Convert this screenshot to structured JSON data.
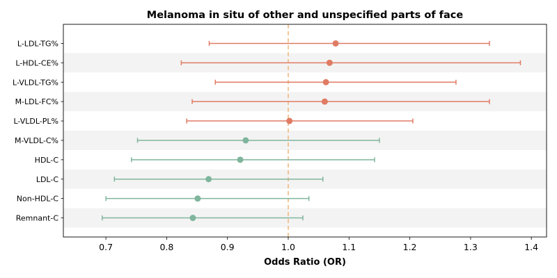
{
  "chart_data": {
    "type": "forest",
    "title": "Melanoma in situ of other and unspecified parts of face",
    "xlabel": "Odds Ratio (OR)",
    "xlim": [
      0.63,
      1.425
    ],
    "xticks": [
      "0.7",
      "0.8",
      "0.9",
      "1.0",
      "1.1",
      "1.2",
      "1.3",
      "1.4"
    ],
    "reference_line": 1.0,
    "colors": {
      "risk": "#e07b63",
      "protective": "#7fb59c",
      "reference": "#f0b57a",
      "band": "#f3f3f3"
    },
    "rows": [
      {
        "label": "L-LDL-TG%",
        "or": 1.078,
        "lo": 0.87,
        "hi": 1.331,
        "group": "risk"
      },
      {
        "label": "L-HDL-CE%",
        "or": 1.068,
        "lo": 0.824,
        "hi": 1.382,
        "group": "risk"
      },
      {
        "label": "L-VLDL-TG%",
        "or": 1.062,
        "lo": 0.88,
        "hi": 1.276,
        "group": "risk"
      },
      {
        "label": "M-LDL-FC%",
        "or": 1.06,
        "lo": 0.842,
        "hi": 1.331,
        "group": "risk"
      },
      {
        "label": "L-VLDL-PL%",
        "or": 1.002,
        "lo": 0.833,
        "hi": 1.205,
        "group": "risk"
      },
      {
        "label": "M-VLDL-C%",
        "or": 0.93,
        "lo": 0.752,
        "hi": 1.15,
        "group": "protective"
      },
      {
        "label": "HDL-C",
        "or": 0.921,
        "lo": 0.742,
        "hi": 1.142,
        "group": "protective"
      },
      {
        "label": "LDL-C",
        "or": 0.869,
        "lo": 0.714,
        "hi": 1.057,
        "group": "protective"
      },
      {
        "label": "Non-HDL-C",
        "or": 0.851,
        "lo": 0.7,
        "hi": 1.034,
        "group": "protective"
      },
      {
        "label": "Remnant-C",
        "or": 0.843,
        "lo": 0.694,
        "hi": 1.024,
        "group": "protective"
      }
    ]
  }
}
